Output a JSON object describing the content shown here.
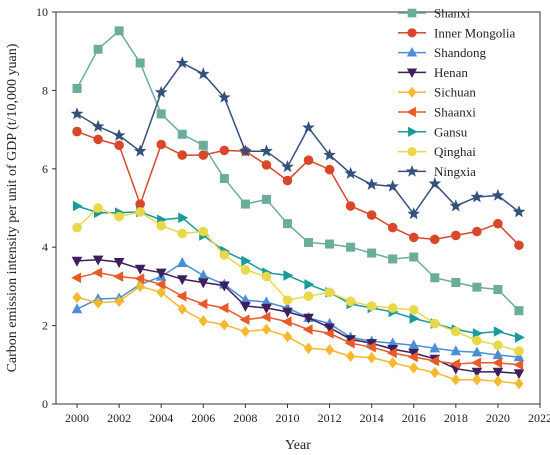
{
  "chart_data": {
    "type": "line",
    "xlabel": "Year",
    "ylabel": "Carbon emission intensity per unit of GDP (t/10,000 yuan)",
    "xlim": [
      1999,
      2022
    ],
    "ylim": [
      0,
      10
    ],
    "xticks": [
      2000,
      2002,
      2004,
      2006,
      2008,
      2010,
      2012,
      2014,
      2016,
      2018,
      2020,
      2022
    ],
    "yticks": [
      0,
      2,
      4,
      6,
      8,
      10
    ],
    "x": [
      2000,
      2001,
      2002,
      2003,
      2004,
      2005,
      2006,
      2007,
      2008,
      2009,
      2010,
      2011,
      2012,
      2013,
      2014,
      2015,
      2016,
      2017,
      2018,
      2019,
      2020,
      2021
    ],
    "grid": false,
    "legend_position": "top-right",
    "series": [
      {
        "name": "Shanxi",
        "color": "#6aad9a",
        "marker": "square",
        "values": [
          8.05,
          9.05,
          9.52,
          8.7,
          7.4,
          6.88,
          6.6,
          5.75,
          5.1,
          5.22,
          4.6,
          4.12,
          4.08,
          4.0,
          3.85,
          3.7,
          3.75,
          3.22,
          3.1,
          2.98,
          2.92,
          2.38
        ]
      },
      {
        "name": "Inner Mongolia",
        "color": "#d9472b",
        "marker": "circle",
        "values": [
          6.95,
          6.75,
          6.6,
          5.1,
          6.62,
          6.35,
          6.35,
          6.47,
          6.45,
          6.1,
          5.7,
          6.22,
          5.98,
          5.05,
          4.82,
          4.5,
          4.25,
          4.2,
          4.3,
          4.4,
          4.6,
          4.05
        ]
      },
      {
        "name": "Shandong",
        "color": "#4a8fd6",
        "marker": "triangle-up",
        "values": [
          2.42,
          2.68,
          2.7,
          3.05,
          3.25,
          3.6,
          3.28,
          3.05,
          2.65,
          2.6,
          2.45,
          2.2,
          2.05,
          1.7,
          1.6,
          1.55,
          1.5,
          1.42,
          1.35,
          1.32,
          1.25,
          1.2
        ]
      },
      {
        "name": "Henan",
        "color": "#3c1f5c",
        "marker": "triangle-down",
        "values": [
          3.65,
          3.68,
          3.62,
          3.45,
          3.35,
          3.18,
          3.1,
          3.02,
          2.5,
          2.45,
          2.35,
          2.2,
          1.95,
          1.65,
          1.55,
          1.4,
          1.3,
          1.15,
          0.9,
          0.82,
          0.82,
          0.78
        ]
      },
      {
        "name": "Sichuan",
        "color": "#f5b82e",
        "marker": "diamond",
        "values": [
          2.72,
          2.58,
          2.62,
          3.0,
          2.85,
          2.42,
          2.12,
          2.02,
          1.85,
          1.9,
          1.72,
          1.42,
          1.38,
          1.22,
          1.18,
          1.05,
          0.92,
          0.8,
          0.62,
          0.62,
          0.58,
          0.52
        ]
      },
      {
        "name": "Shaanxi",
        "color": "#e85a28",
        "marker": "triangle-left",
        "values": [
          3.22,
          3.35,
          3.25,
          3.2,
          3.05,
          2.75,
          2.55,
          2.45,
          2.15,
          2.22,
          2.1,
          1.9,
          1.8,
          1.55,
          1.45,
          1.3,
          1.2,
          1.1,
          1.02,
          1.05,
          1.05,
          1.0
        ]
      },
      {
        "name": "Gansu",
        "color": "#1b9a9a",
        "marker": "triangle-right",
        "values": [
          5.05,
          4.88,
          4.88,
          4.9,
          4.7,
          4.75,
          4.3,
          3.9,
          3.65,
          3.35,
          3.28,
          3.05,
          2.85,
          2.55,
          2.45,
          2.35,
          2.18,
          2.05,
          1.9,
          1.8,
          1.85,
          1.7
        ]
      },
      {
        "name": "Qinghai",
        "color": "#e8d84a",
        "marker": "circle",
        "values": [
          4.5,
          5.0,
          4.78,
          4.9,
          4.55,
          4.35,
          4.4,
          3.8,
          3.42,
          3.25,
          2.65,
          2.75,
          2.85,
          2.62,
          2.5,
          2.45,
          2.4,
          2.05,
          1.85,
          1.62,
          1.5,
          1.35
        ]
      },
      {
        "name": "Ningxia",
        "color": "#34507d",
        "marker": "star",
        "values": [
          7.4,
          7.08,
          6.85,
          6.45,
          7.95,
          8.7,
          8.42,
          7.82,
          6.45,
          6.45,
          6.05,
          7.05,
          6.35,
          5.88,
          5.6,
          5.55,
          4.85,
          5.62,
          5.05,
          5.28,
          5.32,
          4.9
        ]
      }
    ]
  }
}
